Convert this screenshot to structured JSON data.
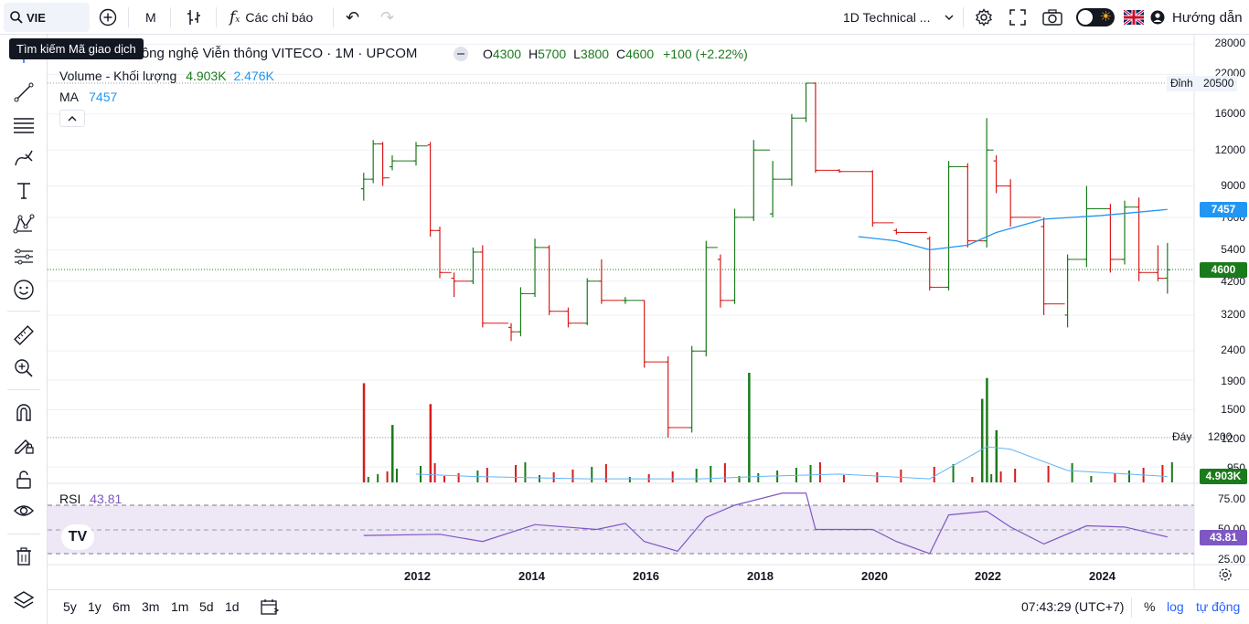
{
  "topbar": {
    "symbol": "VIE",
    "interval": "M",
    "indicators_label": "Các chỉ báo",
    "layout_name": "1D Technical ...",
    "help_label": "Hướng dẫn"
  },
  "tooltip": "Tìm kiếm Mã giao dịch",
  "legend": {
    "title": "Công nghệ Viễn thông VITECO · 1M · UPCOM",
    "open_label": "O",
    "open": "4300",
    "high_label": "H",
    "high": "5700",
    "low_label": "L",
    "low": "3800",
    "close_label": "C",
    "close": "4600",
    "change": "+100 (+2.22%)",
    "volume_label": "Volume - Khối lượng",
    "volume_value": "4.903K",
    "volume_ma": "2.476K",
    "ma_label": "MA",
    "ma_value": "7457",
    "rsi_label": "RSI",
    "rsi_value": "43.81"
  },
  "price_axis": [
    "28000",
    "22000",
    "20500",
    "16000",
    "12000",
    "9000",
    "7457",
    "5400",
    "4600",
    "4200",
    "3200",
    "2400",
    "1900",
    "1500",
    "1200",
    "950"
  ],
  "price_axis_display": [
    {
      "v": "28000"
    },
    {
      "v": "22000"
    },
    {
      "v": "16000"
    },
    {
      "v": "12000"
    },
    {
      "v": "9000"
    },
    {
      "v": "7000"
    },
    {
      "v": "5400"
    },
    {
      "v": "4200"
    },
    {
      "v": "3200"
    },
    {
      "v": "2400"
    },
    {
      "v": "1900"
    },
    {
      "v": "1500"
    },
    {
      "v": "1200"
    },
    {
      "v": "950"
    }
  ],
  "markers": {
    "peak_label": "Đỉnh",
    "peak_value": "20500",
    "bottom_label": "Đáy",
    "bottom_value": "1200",
    "ma_tag": "7457",
    "close_tag": "4600",
    "volume_tag": "4.903K",
    "rsi_tag": "43.81"
  },
  "rsi_axis": [
    "75.00",
    "50.00",
    "25.00"
  ],
  "x_axis": [
    "2012",
    "2014",
    "2016",
    "2018",
    "2020",
    "2022",
    "2024"
  ],
  "bottombar": {
    "ranges": [
      "5y",
      "1y",
      "6m",
      "3m",
      "1m",
      "5d",
      "1d"
    ],
    "time": "07:43:29 (UTC+7)",
    "percent": "%",
    "log": "log",
    "auto": "tự động"
  },
  "colors": {
    "up": "#089981",
    "up_candle": "#1b7a1b",
    "down": "#d81b1b",
    "ma_line": "#2196f3",
    "rsi_line": "#7e57c2",
    "rsi_band": "#ede7f6"
  },
  "chart_data": {
    "type": "candlestick",
    "interval": "1M",
    "x_range": [
      "2011-01",
      "2025-03"
    ],
    "scale": "log",
    "candles": [
      {
        "t": "2011-02",
        "o": 8800,
        "h": 10000,
        "l": 8000,
        "c": 9500
      },
      {
        "t": "2011-04",
        "o": 9500,
        "h": 13000,
        "l": 9200,
        "c": 12600
      },
      {
        "t": "2011-06",
        "o": 12600,
        "h": 12800,
        "l": 9000,
        "c": 9600
      },
      {
        "t": "2011-08",
        "o": 10500,
        "h": 11500,
        "l": 10200,
        "c": 11000
      },
      {
        "t": "2012-01",
        "o": 11000,
        "h": 12800,
        "l": 10600,
        "c": 12400
      },
      {
        "t": "2012-04",
        "o": 12500,
        "h": 12800,
        "l": 6000,
        "c": 6300
      },
      {
        "t": "2012-06",
        "o": 6300,
        "h": 6500,
        "l": 4300,
        "c": 4500
      },
      {
        "t": "2012-09",
        "o": 4300,
        "h": 4500,
        "l": 3700,
        "c": 4200
      },
      {
        "t": "2013-01",
        "o": 4200,
        "h": 5500,
        "l": 4100,
        "c": 5300
      },
      {
        "t": "2013-03",
        "o": 5300,
        "h": 5600,
        "l": 2900,
        "c": 3000
      },
      {
        "t": "2013-09",
        "o": 2900,
        "h": 3000,
        "l": 2600,
        "c": 2800
      },
      {
        "t": "2013-11",
        "o": 2800,
        "h": 4000,
        "l": 2700,
        "c": 3800
      },
      {
        "t": "2014-02",
        "o": 3800,
        "h": 5900,
        "l": 3700,
        "c": 5500
      },
      {
        "t": "2014-05",
        "o": 5500,
        "h": 5600,
        "l": 3200,
        "c": 3300
      },
      {
        "t": "2014-09",
        "o": 3300,
        "h": 3400,
        "l": 2900,
        "c": 3000
      },
      {
        "t": "2015-01",
        "o": 3000,
        "h": 4300,
        "l": 2950,
        "c": 4200
      },
      {
        "t": "2015-04",
        "o": 4200,
        "h": 5000,
        "l": 3500,
        "c": 3600
      },
      {
        "t": "2015-09",
        "o": 3600,
        "h": 3700,
        "l": 3500,
        "c": 3600
      },
      {
        "t": "2016-01",
        "o": 3600,
        "h": 3600,
        "l": 2100,
        "c": 2200
      },
      {
        "t": "2016-06",
        "o": 2200,
        "h": 2300,
        "l": 1200,
        "c": 1300
      },
      {
        "t": "2016-11",
        "o": 1300,
        "h": 2500,
        "l": 1250,
        "c": 2400
      },
      {
        "t": "2017-02",
        "o": 2400,
        "h": 5800,
        "l": 2300,
        "c": 5500
      },
      {
        "t": "2017-05",
        "o": 5000,
        "h": 5200,
        "l": 3400,
        "c": 3600
      },
      {
        "t": "2017-08",
        "o": 3600,
        "h": 7500,
        "l": 3500,
        "c": 7000
      },
      {
        "t": "2017-12",
        "o": 7000,
        "h": 13000,
        "l": 6800,
        "c": 12000
      },
      {
        "t": "2018-04",
        "o": 7200,
        "h": 11000,
        "l": 7000,
        "c": 9500
      },
      {
        "t": "2018-08",
        "o": 9500,
        "h": 16000,
        "l": 9000,
        "c": 15500
      },
      {
        "t": "2018-11",
        "o": 15500,
        "h": 20500,
        "l": 15000,
        "c": 20500
      },
      {
        "t": "2019-01",
        "o": 20500,
        "h": 20600,
        "l": 10000,
        "c": 10200
      },
      {
        "t": "2019-06",
        "o": 10200,
        "h": 10300,
        "l": 10000,
        "c": 10100
      },
      {
        "t": "2020-01",
        "o": 10100,
        "h": 10200,
        "l": 6500,
        "c": 6700
      },
      {
        "t": "2020-06",
        "o": 6300,
        "h": 6400,
        "l": 6100,
        "c": 6200
      },
      {
        "t": "2021-01",
        "o": 5900,
        "h": 6000,
        "l": 3900,
        "c": 4000
      },
      {
        "t": "2021-05",
        "o": 4000,
        "h": 11000,
        "l": 3900,
        "c": 10500
      },
      {
        "t": "2021-09",
        "o": 10500,
        "h": 10800,
        "l": 5500,
        "c": 5800
      },
      {
        "t": "2022-01",
        "o": 5800,
        "h": 15500,
        "l": 5500,
        "c": 12000
      },
      {
        "t": "2022-03",
        "o": 11000,
        "h": 11500,
        "l": 8500,
        "c": 9000
      },
      {
        "t": "2022-06",
        "o": 9000,
        "h": 9500,
        "l": 6500,
        "c": 7000
      },
      {
        "t": "2023-01",
        "o": 6500,
        "h": 7000,
        "l": 3200,
        "c": 3500
      },
      {
        "t": "2023-06",
        "o": 3200,
        "h": 5200,
        "l": 2900,
        "c": 5000
      },
      {
        "t": "2023-10",
        "o": 5000,
        "h": 9000,
        "l": 4700,
        "c": 7500
      },
      {
        "t": "2024-03",
        "o": 7500,
        "h": 7800,
        "l": 4500,
        "c": 5000
      },
      {
        "t": "2024-06",
        "o": 5000,
        "h": 8000,
        "l": 4800,
        "c": 7600
      },
      {
        "t": "2024-09",
        "o": 7600,
        "h": 8200,
        "l": 4200,
        "c": 4500
      },
      {
        "t": "2025-01",
        "o": 4500,
        "h": 5600,
        "l": 4200,
        "c": 4300
      },
      {
        "t": "2025-03",
        "o": 4300,
        "h": 5700,
        "l": 3800,
        "c": 4600
      }
    ],
    "ma_line": [
      {
        "t": "2019-10",
        "v": 6000
      },
      {
        "t": "2020-06",
        "v": 5800
      },
      {
        "t": "2021-01",
        "v": 5400
      },
      {
        "t": "2021-09",
        "v": 5600
      },
      {
        "t": "2022-03",
        "v": 6200
      },
      {
        "t": "2023-01",
        "v": 6900
      },
      {
        "t": "2024-01",
        "v": 7100
      },
      {
        "t": "2025-03",
        "v": 7457
      }
    ],
    "rsi": [
      {
        "t": "2011-02",
        "v": 45
      },
      {
        "t": "2012-06",
        "v": 46
      },
      {
        "t": "2013-03",
        "v": 40
      },
      {
        "t": "2014-02",
        "v": 54
      },
      {
        "t": "2015-03",
        "v": 50
      },
      {
        "t": "2015-09",
        "v": 55
      },
      {
        "t": "2016-01",
        "v": 40
      },
      {
        "t": "2016-08",
        "v": 32
      },
      {
        "t": "2017-02",
        "v": 60
      },
      {
        "t": "2017-08",
        "v": 70
      },
      {
        "t": "2018-06",
        "v": 80
      },
      {
        "t": "2018-11",
        "v": 80
      },
      {
        "t": "2019-01",
        "v": 50
      },
      {
        "t": "2020-01",
        "v": 50
      },
      {
        "t": "2020-06",
        "v": 40
      },
      {
        "t": "2021-01",
        "v": 30
      },
      {
        "t": "2021-05",
        "v": 62
      },
      {
        "t": "2022-01",
        "v": 65
      },
      {
        "t": "2022-06",
        "v": 52
      },
      {
        "t": "2023-01",
        "v": 38
      },
      {
        "t": "2023-10",
        "v": 53
      },
      {
        "t": "2024-06",
        "v": 52
      },
      {
        "t": "2025-03",
        "v": 43.81
      }
    ],
    "rsi_bands": [
      30,
      50,
      70
    ],
    "volume_peaks": [
      {
        "t": "2011-02",
        "v": 1900,
        "up": false
      },
      {
        "t": "2011-08",
        "v": 1100,
        "up": true
      },
      {
        "t": "2012-04",
        "v": 1500,
        "up": false
      },
      {
        "t": "2017-11",
        "v": 2100,
        "up": true
      },
      {
        "t": "2021-12",
        "v": 1600,
        "up": true
      },
      {
        "t": "2022-01",
        "v": 2000,
        "up": true
      },
      {
        "t": "2022-03",
        "v": 1000,
        "up": true
      }
    ],
    "volume_last": 4903
  }
}
